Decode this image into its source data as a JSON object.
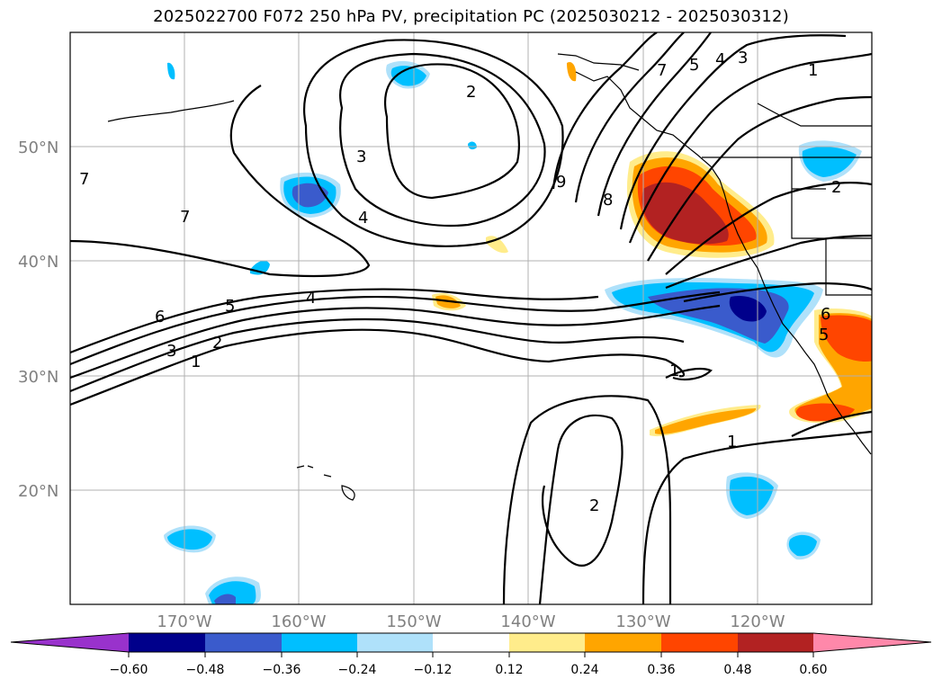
{
  "title": "2025022700 F072 250 hPa PV, precipitation PC (2025030212 - 2025030312)",
  "lat_labels": [
    "50°N",
    "40°N",
    "30°N",
    "20°N"
  ],
  "lon_labels": [
    "170°W",
    "160°W",
    "150°W",
    "140°W",
    "130°W",
    "120°W"
  ],
  "colorbar": {
    "ticks": [
      "−0.60",
      "−0.48",
      "−0.36",
      "−0.24",
      "−0.12",
      "0.12",
      "0.24",
      "0.36",
      "0.48",
      "0.60"
    ],
    "colors": [
      "#9932cc",
      "#00008b",
      "#3a5bcc",
      "#00bfff",
      "#afe1fa",
      "#ffffff",
      "#ffec8b",
      "#ffa500",
      "#ff4500",
      "#b22222",
      "#ff88aa"
    ]
  },
  "contour_labels": [
    "1",
    "2",
    "3",
    "4",
    "5",
    "6",
    "7",
    "8",
    "9"
  ],
  "map_extent": {
    "lon": [
      -180,
      -110
    ],
    "lat": [
      10,
      60
    ]
  }
}
